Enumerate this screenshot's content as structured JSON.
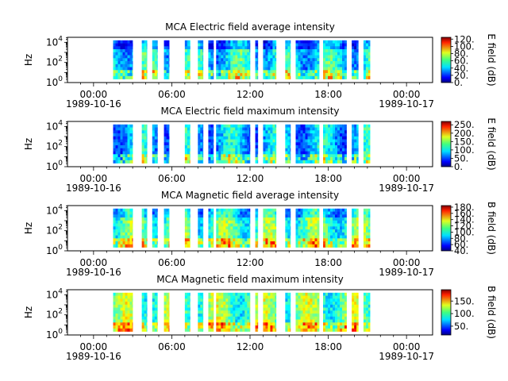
{
  "chart_data": [
    {
      "type": "heatmap",
      "title": "MCA  Electric field average intensity",
      "ylabel": "Hz",
      "colorbar_label": "E field (dB)",
      "colorbar_ticks": [
        "0.",
        "20.",
        "40.",
        "60.",
        "80.",
        "100.",
        "120."
      ],
      "clim": [
        0,
        125
      ],
      "yscale": "log",
      "ylim": [
        1,
        31623
      ],
      "yticks": [
        {
          "base": "10",
          "exp": "0"
        },
        {
          "base": "10",
          "exp": "2"
        },
        {
          "base": "10",
          "exp": "4"
        }
      ],
      "xlim_hours": [
        -2,
        26
      ],
      "xticks": [
        {
          "time": "00:00",
          "date": "1989-10-16"
        },
        {
          "time": "06:00",
          "date": ""
        },
        {
          "time": "12:00",
          "date": ""
        },
        {
          "time": "18:00",
          "date": ""
        },
        {
          "time": "00:00",
          "date": "1989-10-17"
        }
      ],
      "base_level": 0.36,
      "data_segments_hours": [
        [
          1.5,
          3.0
        ],
        [
          3.7,
          4.1
        ],
        [
          4.5,
          4.9
        ],
        [
          5.4,
          5.8
        ],
        [
          7.0,
          7.4
        ],
        [
          8.0,
          8.4
        ],
        [
          8.8,
          9.2
        ],
        [
          9.4,
          12.0
        ],
        [
          12.4,
          12.6
        ],
        [
          13.0,
          14.0
        ],
        [
          14.7,
          15.1
        ],
        [
          15.5,
          17.3
        ],
        [
          17.6,
          19.4
        ],
        [
          19.8,
          20.3
        ],
        [
          20.7,
          21.2
        ]
      ]
    },
    {
      "type": "heatmap",
      "title": "MCA  Electric field maximum intensity",
      "ylabel": "Hz",
      "colorbar_label": "E field (dB)",
      "colorbar_ticks": [
        "0.",
        "50.",
        "100.",
        "150.",
        "200.",
        "250."
      ],
      "clim": [
        0,
        270
      ],
      "yscale": "log",
      "ylim": [
        1,
        31623
      ],
      "yticks": [
        {
          "base": "10",
          "exp": "0"
        },
        {
          "base": "10",
          "exp": "2"
        },
        {
          "base": "10",
          "exp": "4"
        }
      ],
      "xlim_hours": [
        -2,
        26
      ],
      "xticks": [
        {
          "time": "00:00",
          "date": "1989-10-16"
        },
        {
          "time": "06:00",
          "date": ""
        },
        {
          "time": "12:00",
          "date": ""
        },
        {
          "time": "18:00",
          "date": ""
        },
        {
          "time": "00:00",
          "date": "1989-10-17"
        }
      ],
      "base_level": 0.3,
      "data_segments_hours": [
        [
          1.5,
          3.0
        ],
        [
          3.7,
          4.1
        ],
        [
          4.5,
          4.9
        ],
        [
          5.4,
          5.8
        ],
        [
          7.0,
          7.4
        ],
        [
          8.0,
          8.4
        ],
        [
          8.8,
          9.2
        ],
        [
          9.4,
          12.0
        ],
        [
          12.4,
          12.6
        ],
        [
          13.0,
          14.0
        ],
        [
          14.7,
          15.1
        ],
        [
          15.5,
          17.3
        ],
        [
          17.6,
          19.4
        ],
        [
          19.8,
          20.3
        ],
        [
          20.7,
          21.2
        ]
      ]
    },
    {
      "type": "heatmap",
      "title": "MCA  Magnetic field average intensity",
      "ylabel": "Hz",
      "colorbar_label": "B field (dB)",
      "colorbar_ticks": [
        "40.",
        "60.",
        "80.",
        "100.",
        "120.",
        "140.",
        "160.",
        "180."
      ],
      "clim": [
        40,
        185
      ],
      "yscale": "log",
      "ylim": [
        1,
        31623
      ],
      "yticks": [
        {
          "base": "10",
          "exp": "0"
        },
        {
          "base": "10",
          "exp": "2"
        },
        {
          "base": "10",
          "exp": "4"
        }
      ],
      "xlim_hours": [
        -2,
        26
      ],
      "xticks": [
        {
          "time": "00:00",
          "date": "1989-10-16"
        },
        {
          "time": "06:00",
          "date": ""
        },
        {
          "time": "12:00",
          "date": ""
        },
        {
          "time": "18:00",
          "date": ""
        },
        {
          "time": "00:00",
          "date": "1989-10-17"
        }
      ],
      "base_level": 0.45,
      "data_segments_hours": [
        [
          1.5,
          3.0
        ],
        [
          3.7,
          4.1
        ],
        [
          4.5,
          4.9
        ],
        [
          5.4,
          5.8
        ],
        [
          7.0,
          7.4
        ],
        [
          8.0,
          8.4
        ],
        [
          8.8,
          9.2
        ],
        [
          9.4,
          12.0
        ],
        [
          12.4,
          12.6
        ],
        [
          13.0,
          14.0
        ],
        [
          14.7,
          15.1
        ],
        [
          15.5,
          17.3
        ],
        [
          17.6,
          19.4
        ],
        [
          19.8,
          20.3
        ],
        [
          20.7,
          21.2
        ]
      ]
    },
    {
      "type": "heatmap",
      "title": "MCA  Magnetic field maximum intensity",
      "ylabel": "Hz",
      "colorbar_label": "B field (dB)",
      "colorbar_ticks": [
        "50.",
        "100.",
        "150."
      ],
      "clim": [
        15,
        195
      ],
      "yscale": "log",
      "ylim": [
        1,
        31623
      ],
      "yticks": [
        {
          "base": "10",
          "exp": "0"
        },
        {
          "base": "10",
          "exp": "2"
        },
        {
          "base": "10",
          "exp": "4"
        }
      ],
      "xlim_hours": [
        -2,
        26
      ],
      "xticks": [
        {
          "time": "00:00",
          "date": "1989-10-16"
        },
        {
          "time": "06:00",
          "date": ""
        },
        {
          "time": "12:00",
          "date": ""
        },
        {
          "time": "18:00",
          "date": ""
        },
        {
          "time": "00:00",
          "date": "1989-10-17"
        }
      ],
      "base_level": 0.48,
      "data_segments_hours": [
        [
          1.5,
          3.0
        ],
        [
          3.7,
          4.1
        ],
        [
          4.5,
          4.9
        ],
        [
          5.4,
          5.8
        ],
        [
          7.0,
          7.4
        ],
        [
          8.0,
          8.4
        ],
        [
          8.8,
          9.2
        ],
        [
          9.4,
          12.0
        ],
        [
          12.4,
          12.6
        ],
        [
          13.0,
          14.0
        ],
        [
          14.7,
          15.1
        ],
        [
          15.5,
          17.3
        ],
        [
          17.6,
          19.4
        ],
        [
          19.8,
          20.3
        ],
        [
          20.7,
          21.2
        ]
      ]
    }
  ]
}
